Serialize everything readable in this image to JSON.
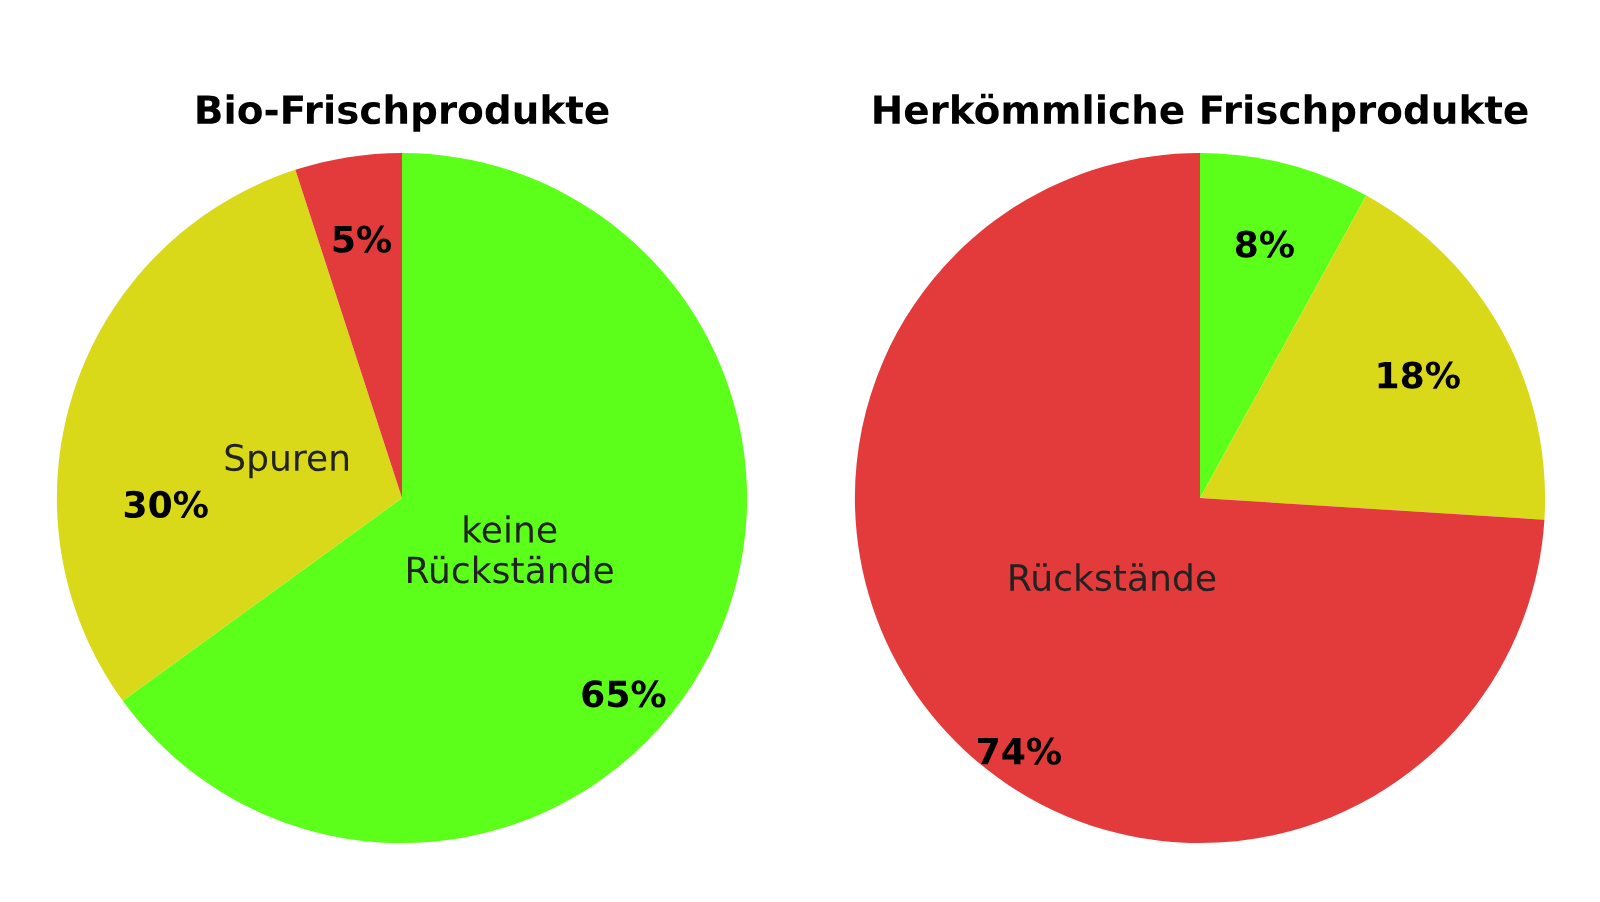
{
  "chart_data": [
    {
      "type": "pie",
      "title": "Bio-Frischprodukte",
      "categories": [
        "keine\nRückstände",
        "Spuren",
        null
      ],
      "values": [
        65,
        30,
        5
      ],
      "colors": [
        "#5cff1a",
        "#d9d91a",
        "#e33b3b"
      ],
      "value_labels": [
        "65%",
        "30%",
        "5%"
      ]
    },
    {
      "type": "pie",
      "title": "Herkömmliche Frischprodukte",
      "categories": [
        null,
        null,
        "Rückstände"
      ],
      "values": [
        8,
        18,
        74
      ],
      "colors": [
        "#5cff1a",
        "#d9d91a",
        "#e33b3b"
      ],
      "value_labels": [
        "8%",
        "18%",
        "74%"
      ]
    }
  ]
}
